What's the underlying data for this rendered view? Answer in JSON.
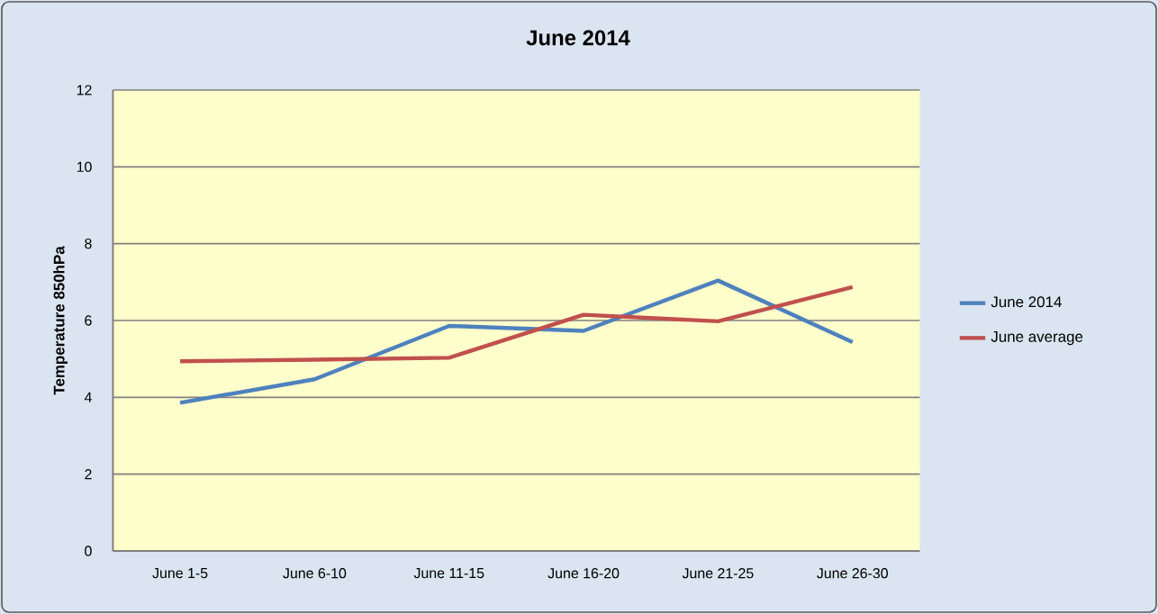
{
  "chart_data": {
    "type": "line",
    "title": "June 2014",
    "ylabel": "Temperature 850hPa",
    "categories": [
      "June 1-5",
      "June 6-10",
      "June 11-15",
      "June 16-20",
      "June 21-25",
      "June 26-30"
    ],
    "series": [
      {
        "name": "June 2014",
        "color": "#4f81bd",
        "values": [
          3.86,
          4.47,
          5.86,
          5.73,
          7.04,
          5.44
        ]
      },
      {
        "name": "June average",
        "color": "#c0504d",
        "values": [
          4.94,
          4.98,
          5.03,
          6.15,
          5.98,
          6.87
        ]
      }
    ],
    "ylim": [
      0,
      12
    ],
    "yticks": [
      0,
      2,
      4,
      6,
      8,
      10,
      12
    ],
    "grid": "y",
    "legend": "right",
    "marker": "none",
    "line_style": "solid"
  }
}
